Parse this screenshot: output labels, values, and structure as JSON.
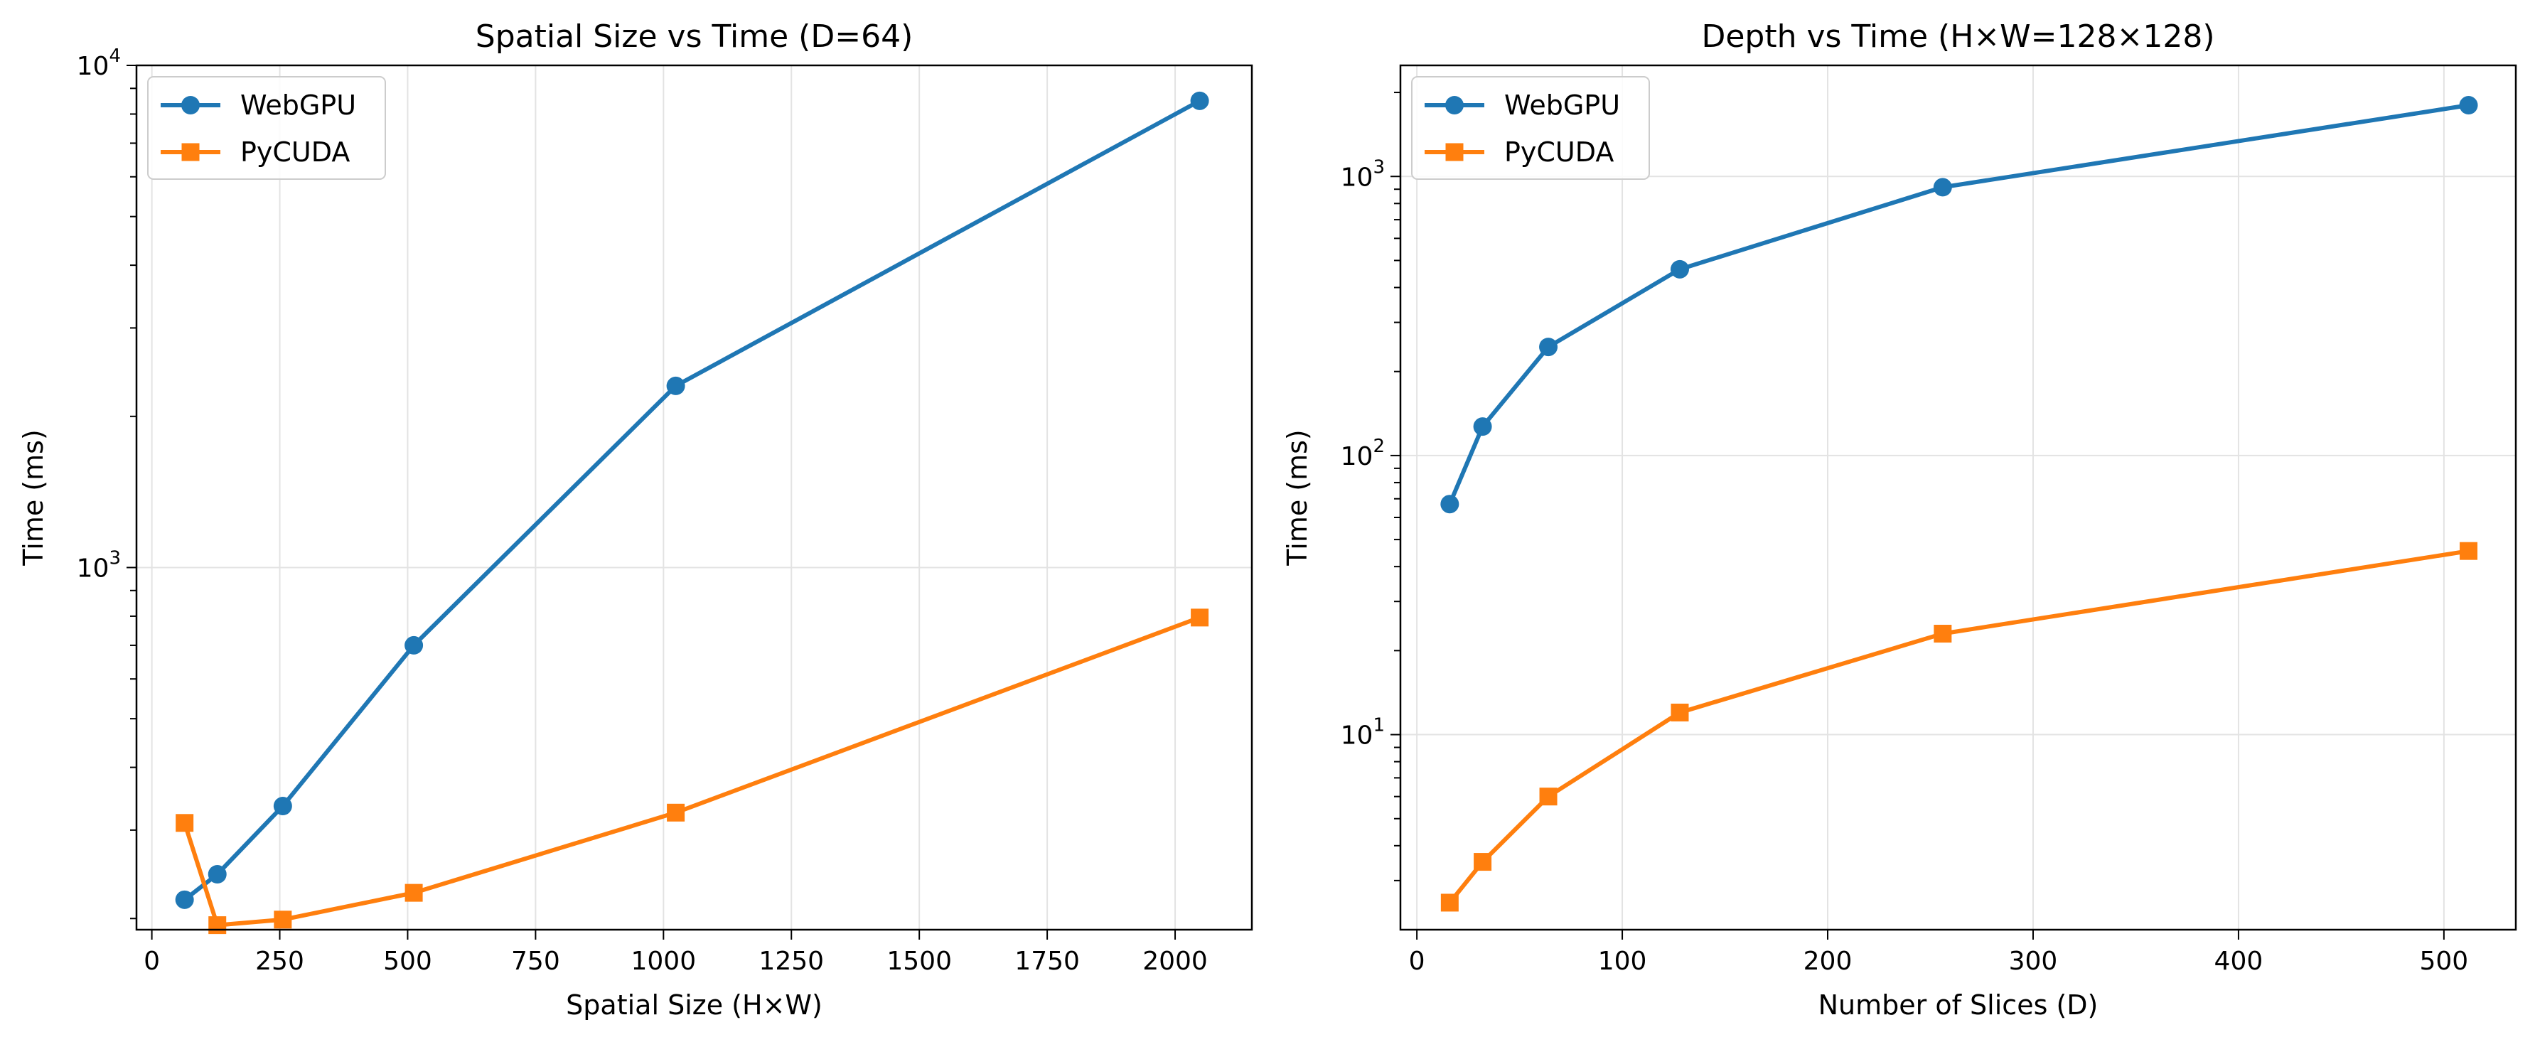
{
  "chart_data": [
    {
      "type": "line",
      "title": "Spatial Size vs Time (D=64)",
      "xlabel": "Spatial Size (H×W)",
      "ylabel": "Time (ms)",
      "yscale": "log",
      "xlim": [
        -30,
        2150
      ],
      "ylim": [
        190,
        10000
      ],
      "xticks": [
        0,
        250,
        500,
        750,
        1000,
        1250,
        1500,
        1750,
        2000
      ],
      "xtick_labels": [
        "0",
        "250",
        "500",
        "750",
        "1000",
        "1250",
        "1500",
        "1750",
        "2000"
      ],
      "yticks": [
        {
          "value": 1000,
          "base": "10",
          "exp": "3"
        },
        {
          "value": 10000,
          "base": "10",
          "exp": "4"
        }
      ],
      "grid": true,
      "legend_position": "top-left",
      "series": [
        {
          "name": "WebGPU",
          "color": "#1f77b4",
          "marker": "circle",
          "x": [
            64,
            128,
            256,
            512,
            1024,
            2048
          ],
          "y": [
            218,
            245,
            335,
            700,
            2300,
            8500
          ]
        },
        {
          "name": "PyCUDA",
          "color": "#ff7f0e",
          "marker": "square",
          "x": [
            64,
            128,
            256,
            512,
            1024,
            2048
          ],
          "y": [
            310,
            194,
            199,
            225,
            325,
            795
          ]
        }
      ]
    },
    {
      "type": "line",
      "title": "Depth vs Time (H×W=128×128)",
      "xlabel": "Number of Slices (D)",
      "ylabel": "Time (ms)",
      "yscale": "log",
      "xlim": [
        -8,
        535
      ],
      "ylim": [
        2.0,
        2500
      ],
      "xticks": [
        0,
        100,
        200,
        300,
        400,
        500
      ],
      "xtick_labels": [
        "0",
        "100",
        "200",
        "300",
        "400",
        "500"
      ],
      "yticks": [
        {
          "value": 10,
          "base": "10",
          "exp": "1"
        },
        {
          "value": 100,
          "base": "10",
          "exp": "2"
        },
        {
          "value": 1000,
          "base": "10",
          "exp": "3"
        }
      ],
      "grid": true,
      "legend_position": "top-left",
      "series": [
        {
          "name": "WebGPU",
          "color": "#1f77b4",
          "marker": "circle",
          "x": [
            16,
            32,
            64,
            128,
            256,
            512
          ],
          "y": [
            67,
            127,
            245,
            465,
            915,
            1800
          ]
        },
        {
          "name": "PyCUDA",
          "color": "#ff7f0e",
          "marker": "square",
          "x": [
            16,
            32,
            64,
            128,
            256,
            512
          ],
          "y": [
            2.5,
            3.5,
            6.0,
            12.0,
            23.0,
            45.5
          ]
        }
      ]
    }
  ]
}
